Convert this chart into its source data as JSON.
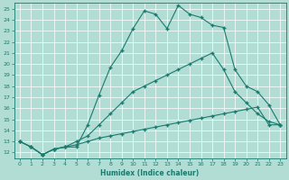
{
  "xlabel": "Humidex (Indice chaleur)",
  "bg_color": "#b2ddd4",
  "line_color": "#1a7a6e",
  "grid_color": "#ffffff",
  "xlim": [
    -0.5,
    23.5
  ],
  "ylim": [
    11.5,
    25.5
  ],
  "xticks": [
    0,
    1,
    2,
    3,
    4,
    5,
    6,
    7,
    8,
    9,
    10,
    11,
    12,
    13,
    14,
    15,
    16,
    17,
    18,
    19,
    20,
    21,
    22,
    23
  ],
  "yticks": [
    12,
    13,
    14,
    15,
    16,
    17,
    18,
    19,
    20,
    21,
    22,
    23,
    24,
    25
  ],
  "curve1_x": [
    0,
    1,
    2,
    3,
    4,
    5,
    6,
    7,
    8,
    9,
    10,
    11,
    12,
    13,
    14,
    15,
    16,
    17,
    18,
    19,
    20,
    21,
    22,
    23
  ],
  "curve1_y": [
    13.0,
    12.5,
    11.8,
    12.3,
    12.5,
    12.5,
    14.5,
    17.2,
    19.7,
    21.2,
    23.2,
    24.8,
    24.5,
    23.2,
    25.3,
    24.5,
    24.2,
    23.5,
    23.3,
    19.5,
    18.0,
    17.5,
    16.3,
    14.5
  ],
  "curve2_x": [
    0,
    1,
    2,
    3,
    4,
    5,
    6,
    7,
    8,
    9,
    10,
    11,
    12,
    13,
    14,
    15,
    16,
    17,
    18,
    19,
    20,
    21,
    22,
    23
  ],
  "curve2_y": [
    13.0,
    12.5,
    11.8,
    12.3,
    12.5,
    13.0,
    13.5,
    14.5,
    15.5,
    16.5,
    17.5,
    18.0,
    18.5,
    19.0,
    19.5,
    20.0,
    20.5,
    21.0,
    19.5,
    17.5,
    16.5,
    15.5,
    14.8,
    14.5
  ],
  "curve3_x": [
    0,
    1,
    2,
    3,
    4,
    5,
    6,
    7,
    8,
    9,
    10,
    11,
    12,
    13,
    14,
    15,
    16,
    17,
    18,
    19,
    20,
    21,
    22,
    23
  ],
  "curve3_y": [
    13.0,
    12.5,
    11.8,
    12.3,
    12.5,
    12.7,
    13.0,
    13.3,
    13.5,
    13.7,
    13.9,
    14.1,
    14.3,
    14.5,
    14.7,
    14.9,
    15.1,
    15.3,
    15.5,
    15.7,
    15.9,
    16.1,
    14.5,
    14.5
  ]
}
